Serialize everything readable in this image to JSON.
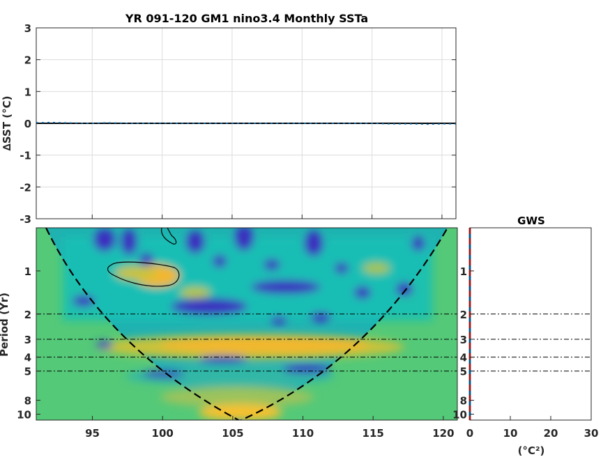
{
  "chart_data": [
    {
      "type": "line",
      "title": "YR 091-120 GM1 nino3.4 Monthly SSTa",
      "ylabel": "∆SST (°C)",
      "xlabel": "",
      "xlim": [
        91,
        121
      ],
      "ylim": [
        -3,
        3
      ],
      "x_ticks": [
        95,
        100,
        105,
        110,
        115,
        120
      ],
      "y_ticks": [
        -3,
        -2,
        -1,
        0,
        1,
        2,
        3
      ],
      "grid": true,
      "series": [
        {
          "color": "#0072bd",
          "x": [
            91,
            92,
            93,
            94,
            95,
            96,
            97,
            98,
            99,
            100,
            101,
            102,
            103,
            104,
            105,
            106,
            107,
            108,
            109,
            110,
            111,
            112,
            113,
            114,
            115,
            116,
            117,
            118,
            119,
            120,
            121
          ],
          "values": [
            0.02,
            0.03,
            0.02,
            0.01,
            0.0,
            0.02,
            0.01,
            0.0,
            0.0,
            0.01,
            0.0,
            0.0,
            0.0,
            0.0,
            0.0,
            0.0,
            0.0,
            0.0,
            0.0,
            0.0,
            0.0,
            0.0,
            0.0,
            0.0,
            0.0,
            -0.02,
            -0.02,
            -0.02,
            -0.03,
            -0.02,
            -0.02
          ]
        }
      ],
      "reference_line": {
        "y": 0,
        "color": "#000000"
      }
    },
    {
      "type": "heatmap",
      "title": "",
      "ylabel": "Period (Yr)",
      "xlabel": "",
      "xlim": [
        91,
        121
      ],
      "y_scale": "log",
      "ylim": [
        0.5,
        11
      ],
      "x_ticks": [
        95,
        100,
        105,
        110,
        115,
        120
      ],
      "y_ticks": [
        1,
        2,
        3,
        4,
        5,
        8,
        10
      ],
      "reference_periods": [
        2,
        3,
        4,
        5
      ],
      "colormap": "parula",
      "masked_color": "#54c978",
      "cone_of_influence": "dashed black",
      "significance_contour": "black"
    },
    {
      "type": "line",
      "title": "GWS",
      "xlabel": "(°C²)",
      "xlim": [
        0,
        30
      ],
      "x_ticks": [
        0,
        10,
        20,
        30
      ],
      "y_scale": "log",
      "y_ticks": [
        1,
        2,
        3,
        4,
        5,
        8,
        10
      ],
      "reference_periods": [
        2,
        3,
        4,
        5
      ],
      "series": [
        {
          "style": "solid",
          "color": "#0072bd",
          "values": [
            0,
            0,
            0,
            0,
            0,
            0,
            0
          ]
        },
        {
          "style": "dashed",
          "color": "#d62020",
          "values": [
            0,
            0,
            0,
            0,
            0,
            0,
            0
          ]
        }
      ]
    }
  ]
}
